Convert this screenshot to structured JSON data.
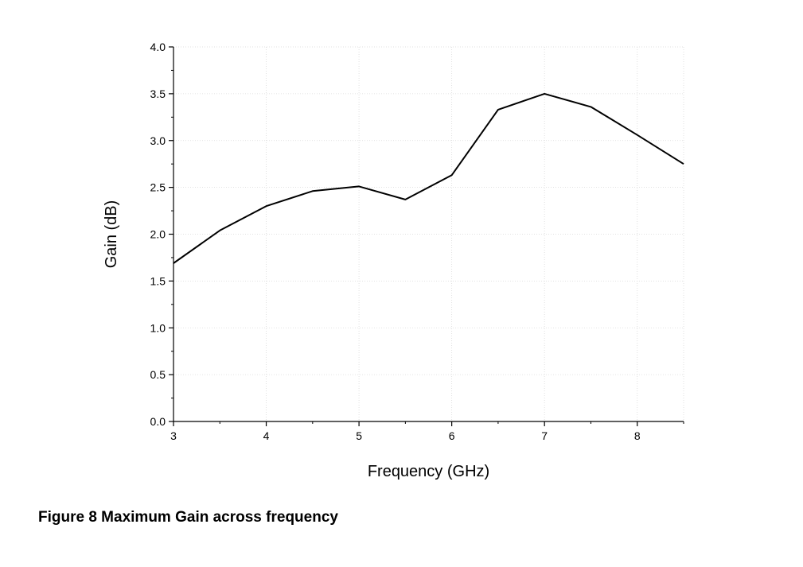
{
  "caption": "Figure 8 Maximum Gain across frequency",
  "chart_data": {
    "type": "line",
    "title": "",
    "xlabel": "Frequency (GHz)",
    "ylabel": "Gain (dB)",
    "xlim": [
      3,
      8.5
    ],
    "ylim": [
      0,
      4.0
    ],
    "x_ticks": [
      3,
      4,
      5,
      6,
      7,
      8
    ],
    "x_tick_labels": [
      "3",
      "4",
      "5",
      "6",
      "7",
      "8"
    ],
    "y_ticks": [
      0,
      0.5,
      1.0,
      1.5,
      2.0,
      2.5,
      3.0,
      3.5,
      4.0
    ],
    "y_tick_labels": [
      "0.0",
      "0.5",
      "1.0",
      "1.5",
      "2.0",
      "2.5",
      "3.0",
      "3.5",
      "4.0"
    ],
    "grid": true,
    "series": [
      {
        "color": "#000000",
        "x": [
          3,
          3.5,
          4,
          4.5,
          5,
          5.5,
          6,
          6.5,
          7,
          7.5,
          8,
          8.5
        ],
        "y": [
          1.69,
          2.04,
          2.3,
          2.46,
          2.51,
          2.37,
          2.63,
          3.33,
          3.5,
          3.36,
          3.06,
          2.75
        ]
      }
    ]
  }
}
